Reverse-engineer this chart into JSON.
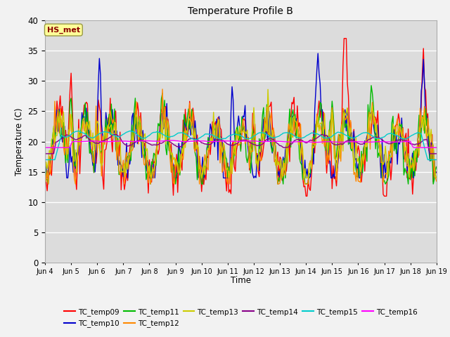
{
  "title": "Temperature Profile B",
  "xlabel": "Time",
  "ylabel": "Temperature (C)",
  "ylim": [
    0,
    40
  ],
  "yticks": [
    0,
    5,
    10,
    15,
    20,
    25,
    30,
    35,
    40
  ],
  "x_labels": [
    "Jun 4",
    "Jun 5",
    "Jun 6",
    "Jun 7",
    "Jun 8",
    "Jun 9",
    "Jun 10",
    "Jun 11",
    "Jun 12",
    "Jun 13",
    "Jun 14",
    "Jun 15",
    "Jun 16",
    "Jun 17",
    "Jun 18",
    "Jun 19"
  ],
  "annotation_text": "HS_met",
  "annotation_color": "#8B0000",
  "annotation_bg": "#FFFF99",
  "series_colors": {
    "TC_temp09": "#FF0000",
    "TC_temp10": "#0000CC",
    "TC_temp11": "#00BB00",
    "TC_temp12": "#FF8800",
    "TC_temp13": "#CCCC00",
    "TC_temp14": "#880088",
    "TC_temp15": "#00CCCC",
    "TC_temp16": "#FF00FF"
  },
  "bg_color": "#DCDCDC",
  "fig_bg": "#F2F2F2"
}
